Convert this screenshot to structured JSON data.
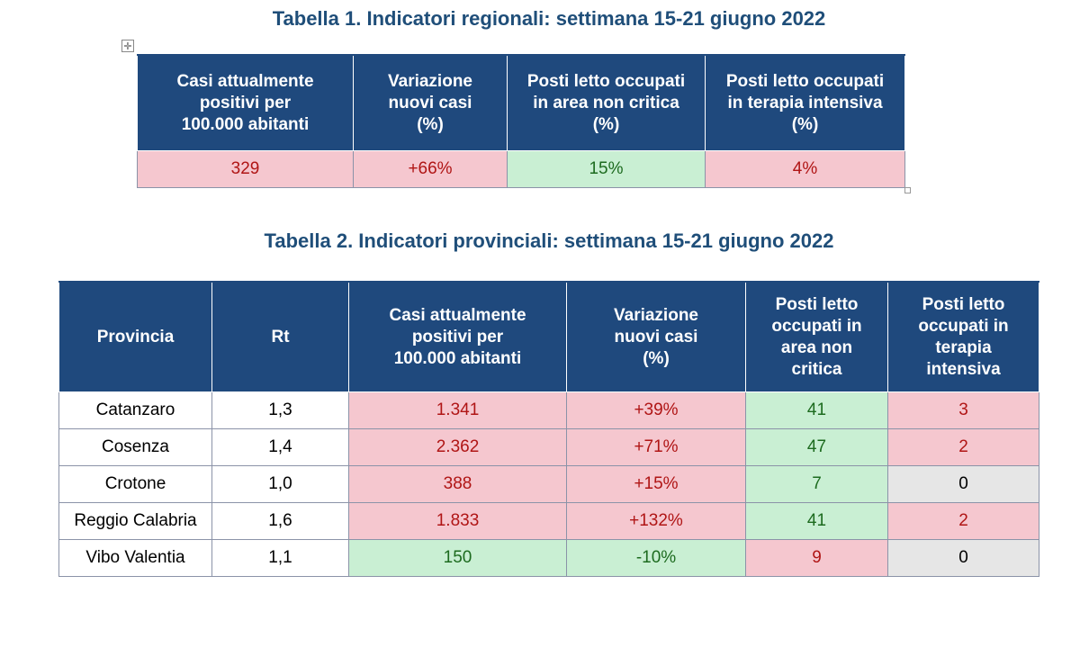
{
  "table1": {
    "title": "Tabella 1. Indicatori regionali: settimana 15-21 giugno 2022",
    "headers": [
      [
        "Casi attualmente",
        "positivi per",
        "100.000 abitanti"
      ],
      [
        "Variazione",
        "nuovi casi",
        "(%)"
      ],
      [
        "Posti letto occupati",
        "in area non critica",
        "(%)"
      ],
      [
        "Posti letto occupati",
        "in terapia intensiva",
        "(%)"
      ]
    ],
    "row": [
      "329",
      "+66%",
      "15%",
      "4%"
    ],
    "row_status": [
      "pink",
      "pink",
      "green",
      "pink"
    ]
  },
  "table2": {
    "title": "Tabella 2. Indicatori provinciali: settimana 15-21 giugno 2022",
    "headers": [
      [
        "Provincia"
      ],
      [
        "Rt"
      ],
      [
        "Casi attualmente",
        "positivi per",
        "100.000 abitanti"
      ],
      [
        "Variazione",
        "nuovi casi",
        "(%)"
      ],
      [
        "Posti letto",
        "occupati in",
        "area non",
        "critica"
      ],
      [
        "Posti letto",
        "occupati in",
        "terapia",
        "intensiva"
      ]
    ],
    "rows": [
      {
        "provincia": "Catanzaro",
        "rt": "1,3",
        "casi": "1.341",
        "variazione": "+39%",
        "area_non_critica": "41",
        "terapia_intensiva": "3"
      },
      {
        "provincia": "Cosenza",
        "rt": "1,4",
        "casi": "2.362",
        "variazione": "+71%",
        "area_non_critica": "47",
        "terapia_intensiva": "2"
      },
      {
        "provincia": "Crotone",
        "rt": "1,0",
        "casi": "388",
        "variazione": "+15%",
        "area_non_critica": "7",
        "terapia_intensiva": "0"
      },
      {
        "provincia": "Reggio Calabria",
        "rt": "1,6",
        "casi": "1.833",
        "variazione": "+132%",
        "area_non_critica": "41",
        "terapia_intensiva": "2"
      },
      {
        "provincia": "Vibo Valentia",
        "rt": "1,1",
        "casi": "150",
        "variazione": "-10%",
        "area_non_critica": "9",
        "terapia_intensiva": "0"
      }
    ],
    "row_status": [
      [
        "white",
        "white",
        "pink",
        "pink",
        "green",
        "pink"
      ],
      [
        "white",
        "white",
        "pink",
        "pink",
        "green",
        "pink"
      ],
      [
        "white",
        "white",
        "pink",
        "pink",
        "green",
        "grey"
      ],
      [
        "white",
        "white",
        "pink",
        "pink",
        "green",
        "pink"
      ],
      [
        "white",
        "white",
        "green",
        "green",
        "pink",
        "grey"
      ]
    ]
  },
  "colors": {
    "header_bg": "#1f497d",
    "title_text": "#1f4e79",
    "pink_cell": "#f5c7cf",
    "green_cell": "#c9efd3",
    "grey_cell": "#e6e6e6"
  },
  "icons": {
    "move_handle": "move-cross-icon",
    "resize_handle": "resize-square-icon"
  }
}
